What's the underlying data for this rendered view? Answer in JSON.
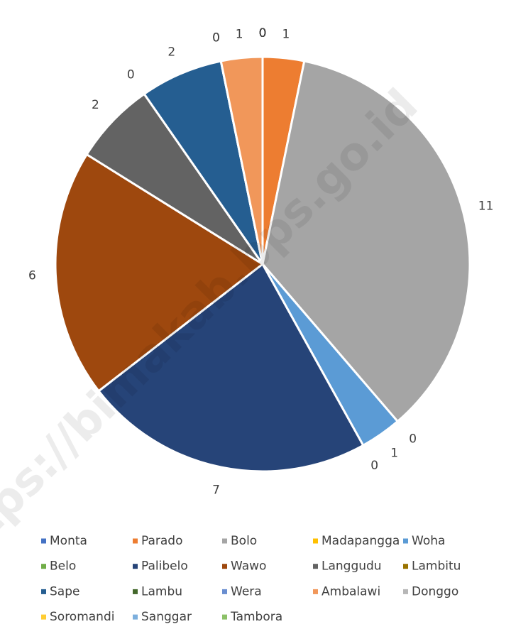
{
  "chart_data": {
    "type": "pie",
    "categories": [
      "Monta",
      "Parado",
      "Bolo",
      "Madapangga",
      "Woha",
      "Belo",
      "Palibelo",
      "Wawo",
      "Langgudu",
      "Lambitu",
      "Sape",
      "Lambu",
      "Wera",
      "Ambalawi",
      "Donggo",
      "Soromandi",
      "Sanggar",
      "Tambora"
    ],
    "values": [
      0,
      1,
      11,
      0,
      1,
      0,
      7,
      6,
      2,
      0,
      2,
      0,
      0,
      1,
      0,
      0,
      0,
      0
    ],
    "colors": [
      "#4472c4",
      "#ed7d31",
      "#a5a5a5",
      "#ffc000",
      "#5b9bd5",
      "#70ad47",
      "#264478",
      "#9e480e",
      "#636363",
      "#997300",
      "#255e91",
      "#43682b",
      "#698ed0",
      "#f1975a",
      "#b7b7b7",
      "#ffcd33",
      "#7cafdd",
      "#8cc168"
    ],
    "legend": "bottom",
    "watermark": "https://bimakab.bps.go.id"
  }
}
